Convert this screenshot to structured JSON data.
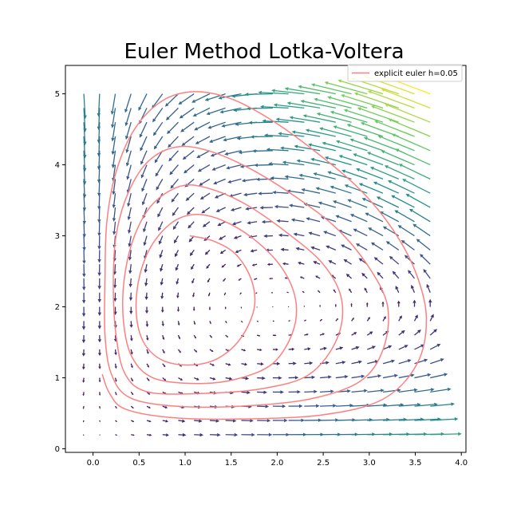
{
  "chart_data": {
    "type": "quiver",
    "title": "Euler Method Lotka-Voltera",
    "xlabel": "",
    "ylabel": "",
    "xlim": [
      -0.3,
      4.05
    ],
    "ylim": [
      -0.05,
      5.4
    ],
    "x_ticks": [
      0.0,
      0.5,
      1.0,
      1.5,
      2.0,
      2.5,
      3.0,
      3.5,
      4.0
    ],
    "x_tick_labels": [
      "0.0",
      "0.5",
      "1.0",
      "1.5",
      "2.0",
      "2.5",
      "3.0",
      "3.5",
      "4.0"
    ],
    "y_ticks": [
      0,
      1,
      2,
      3,
      4,
      5
    ],
    "y_tick_labels": [
      "0",
      "1",
      "2",
      "3",
      "4",
      "5"
    ],
    "grid": false,
    "legend": {
      "placement": "upper-right",
      "entries": [
        "explicit euler h=0.05"
      ]
    },
    "vector_field": {
      "description": "direction field of a Lotka-Volterra system, colored by magnitude (viridis)",
      "x_start": -0.1,
      "x_step": 0.171,
      "x_count": 23,
      "y_start": 0.2,
      "y_step": 0.2,
      "y_count": 25,
      "colormap": [
        "#440154",
        "#3b528b",
        "#21918c",
        "#5ec962",
        "#fde725"
      ]
    },
    "series": [
      {
        "name": "explicit euler h=0.05",
        "kind": "line",
        "color": "#ff7f7f",
        "points": [
          [
            1.05,
            3.0
          ],
          [
            1.3,
            2.93
          ],
          [
            1.55,
            2.74
          ],
          [
            1.72,
            2.38
          ],
          [
            1.75,
            1.98
          ],
          [
            1.6,
            1.55
          ],
          [
            1.35,
            1.27
          ],
          [
            1.05,
            1.18
          ],
          [
            0.75,
            1.25
          ],
          [
            0.55,
            1.5
          ],
          [
            0.47,
            1.9
          ],
          [
            0.5,
            2.4
          ],
          [
            0.63,
            2.85
          ],
          [
            0.85,
            3.18
          ],
          [
            1.1,
            3.3
          ],
          [
            1.4,
            3.22
          ],
          [
            1.75,
            2.95
          ],
          [
            2.05,
            2.55
          ],
          [
            2.2,
            2.1
          ],
          [
            2.17,
            1.65
          ],
          [
            1.95,
            1.2
          ],
          [
            1.55,
            0.98
          ],
          [
            1.1,
            0.92
          ],
          [
            0.65,
            1.0
          ],
          [
            0.42,
            1.3
          ],
          [
            0.33,
            1.8
          ],
          [
            0.34,
            2.4
          ],
          [
            0.45,
            3.0
          ],
          [
            0.65,
            3.45
          ],
          [
            0.95,
            3.7
          ],
          [
            1.25,
            3.67
          ],
          [
            1.65,
            3.45
          ],
          [
            2.1,
            3.05
          ],
          [
            2.5,
            2.6
          ],
          [
            2.7,
            2.1
          ],
          [
            2.65,
            1.55
          ],
          [
            2.35,
            1.05
          ],
          [
            1.85,
            0.85
          ],
          [
            1.2,
            0.78
          ],
          [
            0.6,
            0.8
          ],
          [
            0.35,
            1.05
          ],
          [
            0.25,
            1.6
          ],
          [
            0.22,
            2.3
          ],
          [
            0.25,
            3.0
          ],
          [
            0.38,
            3.6
          ],
          [
            0.6,
            4.05
          ],
          [
            0.9,
            4.25
          ],
          [
            1.25,
            4.2
          ],
          [
            1.7,
            3.95
          ],
          [
            2.2,
            3.55
          ],
          [
            2.65,
            3.1
          ],
          [
            3.0,
            2.55
          ],
          [
            3.2,
            2.0
          ],
          [
            3.15,
            1.4
          ],
          [
            2.9,
            0.95
          ],
          [
            2.35,
            0.7
          ],
          [
            1.6,
            0.6
          ],
          [
            0.9,
            0.6
          ],
          [
            0.4,
            0.72
          ],
          [
            0.2,
            1.05
          ],
          [
            0.13,
            1.6
          ],
          [
            0.13,
            2.4
          ],
          [
            0.15,
            3.2
          ],
          [
            0.25,
            3.9
          ],
          [
            0.45,
            4.5
          ],
          [
            0.75,
            4.9
          ],
          [
            1.1,
            5.03
          ],
          [
            1.5,
            4.93
          ],
          [
            1.95,
            4.62
          ],
          [
            2.45,
            4.15
          ],
          [
            2.9,
            3.65
          ],
          [
            3.25,
            3.1
          ],
          [
            3.5,
            2.5
          ],
          [
            3.62,
            1.85
          ],
          [
            3.52,
            1.2
          ],
          [
            3.15,
            0.7
          ],
          [
            2.5,
            0.48
          ],
          [
            1.6,
            0.42
          ],
          [
            0.85,
            0.44
          ],
          [
            0.35,
            0.56
          ],
          [
            0.18,
            0.78
          ],
          [
            0.1,
            1.05
          ]
        ]
      }
    ]
  }
}
